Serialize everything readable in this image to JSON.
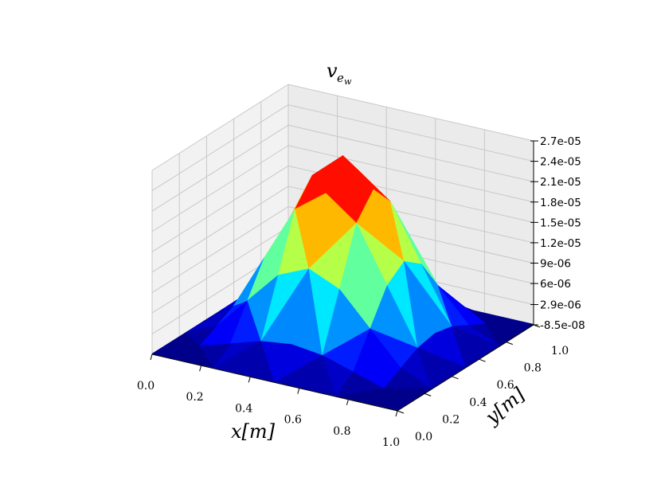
{
  "chart_data": {
    "type": "surface",
    "title": "v_{e_w}",
    "title_main": "v",
    "title_sub": "e",
    "title_subsub": "w",
    "xlabel": "x[m]",
    "ylabel": "y[m]",
    "xlim": [
      0.0,
      1.0
    ],
    "ylim": [
      0.0,
      1.0
    ],
    "zlim": [
      -8.5e-08,
      2.7e-05
    ],
    "x_ticks": [
      "0.0",
      "0.2",
      "0.4",
      "0.6",
      "0.8",
      "1.0"
    ],
    "y_ticks": [
      "0.0",
      "0.2",
      "0.4",
      "0.6",
      "0.8",
      "1.0"
    ],
    "z_ticks": [
      "-8.5e-08",
      "2.9e-06",
      "6e-06",
      "9e-06",
      "1.2e-05",
      "1.5e-05",
      "1.8e-05",
      "2.1e-05",
      "2.4e-05",
      "2.7e-05"
    ],
    "grid_x": [
      0.0,
      0.125,
      0.25,
      0.375,
      0.5,
      0.625,
      0.75,
      0.875,
      1.0
    ],
    "grid_y": [
      0.0,
      0.125,
      0.25,
      0.375,
      0.5,
      0.625,
      0.75,
      0.875,
      1.0
    ],
    "peak_value": 2.7e-05,
    "shape": "peak * sin(pi*x)^2 * sin(pi*y)^2",
    "colormap": "jet",
    "grid": true,
    "colors": {
      "pane_back": "#ebebeb",
      "pane_side": "#f2f2f2",
      "pane_floor": "#f7f7f7",
      "grid_line": "#c8c8c8"
    }
  }
}
